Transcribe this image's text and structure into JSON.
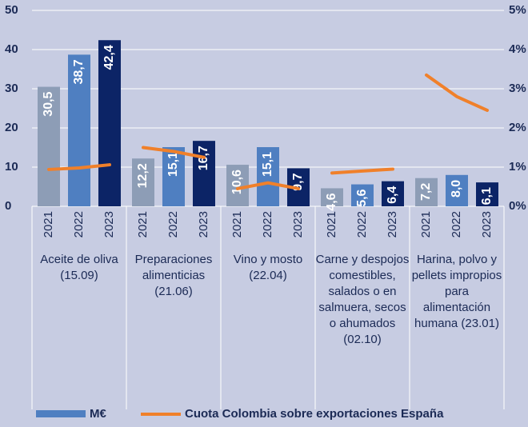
{
  "chart_data": {
    "type": "bar",
    "categories": [
      "Aceite de oliva  (15.09)",
      "Preparaciones alimenticias (21.06)",
      "Vino y mosto (22.04)",
      "Carne y despojos comestibles, salados o en salmuera, secos o ahumados (02.10)",
      "Harina, polvo y pellets impropios para alimentación humana (23.01)"
    ],
    "subcategories": [
      "2021",
      "2022",
      "2023"
    ],
    "series": [
      {
        "name": "M€",
        "type": "bar",
        "color": "#4f7fc1",
        "year_colors": [
          "#8d9db6",
          "#4f7fc1",
          "#0c2466"
        ],
        "values": [
          [
            30.5,
            38.7,
            42.4
          ],
          [
            12.2,
            15.1,
            16.7
          ],
          [
            10.6,
            15.1,
            9.7
          ],
          [
            4.6,
            5.6,
            6.4
          ],
          [
            7.2,
            8.0,
            6.1
          ]
        ],
        "value_labels": [
          [
            "30,5",
            "38,7",
            "42,4"
          ],
          [
            "12,2",
            "15,1",
            "16,7"
          ],
          [
            "10,6",
            "15,1",
            "9,7"
          ],
          [
            "4,6",
            "5,6",
            "6,4"
          ],
          [
            "7,2",
            "8,0",
            "6,1"
          ]
        ]
      },
      {
        "name": "Cuota Colombia sobre exportaciones España",
        "type": "line",
        "axis": "y2",
        "color": "#f0802a",
        "values": [
          [
            0.94,
            0.98,
            1.06
          ],
          [
            1.5,
            1.4,
            1.25
          ],
          [
            0.45,
            0.6,
            0.45
          ],
          [
            0.85,
            0.9,
            0.95
          ],
          [
            3.35,
            2.8,
            2.45
          ]
        ]
      }
    ],
    "ylim": [
      0,
      50
    ],
    "yticks": [
      0,
      10,
      20,
      30,
      40,
      50
    ],
    "y2lim": [
      0,
      5
    ],
    "y2ticks": [
      {
        "value": 0,
        "label": "0%"
      },
      {
        "value": 1,
        "label": "1%"
      },
      {
        "value": 2,
        "label": "2%"
      },
      {
        "value": 3,
        "label": "3%"
      },
      {
        "value": 4,
        "label": "4%"
      },
      {
        "value": 5,
        "label": "5%"
      }
    ],
    "grid": true,
    "legend": "bottom"
  }
}
